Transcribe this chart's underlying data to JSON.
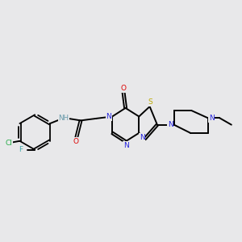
{
  "background_color": "#e8e8ea",
  "figsize": [
    3.0,
    3.0
  ],
  "dpi": 100,
  "colors": {
    "C": "black",
    "N": "#2222dd",
    "O": "#dd0000",
    "S": "#bbaa00",
    "Cl": "#22aa44",
    "F": "#44aaaa",
    "NH": "#6699aa",
    "bond": "black"
  }
}
